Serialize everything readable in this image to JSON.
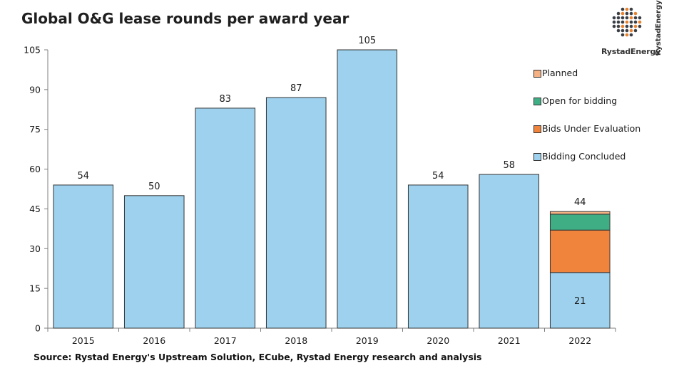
{
  "title": "Global O&G lease rounds per award year",
  "source": "Source: Rystad Energy's Upstream Solution,  ECube, Rystad Energy research and analysis",
  "logo": {
    "name": "RystadEnergy",
    "vertical": "RystadEnergy",
    "icon": "globe-dots-icon"
  },
  "colors": {
    "Bidding Concluded": "#9dd1ee",
    "Bids Under Evaluation": "#f0843c",
    "Open for bidding": "#3fae85",
    "Planned": "#f4b183"
  },
  "chart_data": {
    "type": "bar",
    "stacked": true,
    "categories": [
      "2015",
      "2016",
      "2017",
      "2018",
      "2019",
      "2020",
      "2021",
      "2022"
    ],
    "series": [
      {
        "name": "Bidding Concluded",
        "values": [
          54,
          50,
          83,
          87,
          105,
          54,
          58,
          21
        ]
      },
      {
        "name": "Bids Under Evaluation",
        "values": [
          0,
          0,
          0,
          0,
          0,
          0,
          0,
          16
        ]
      },
      {
        "name": "Open for bidding",
        "values": [
          0,
          0,
          0,
          0,
          0,
          0,
          0,
          6
        ]
      },
      {
        "name": "Planned",
        "values": [
          0,
          0,
          0,
          0,
          0,
          0,
          0,
          1
        ]
      }
    ],
    "totals": [
      54,
      50,
      83,
      87,
      105,
      54,
      58,
      44
    ],
    "inner_labels": [
      "",
      "",
      "",
      "",
      "",
      "",
      "",
      "21"
    ],
    "yticks": [
      0,
      15,
      30,
      45,
      60,
      75,
      90,
      105
    ],
    "ylim": [
      0,
      105
    ],
    "legend": [
      "Planned",
      "Open for bidding",
      "Bids Under Evaluation",
      "Bidding Concluded"
    ],
    "legend_position": "right",
    "grid": false
  }
}
